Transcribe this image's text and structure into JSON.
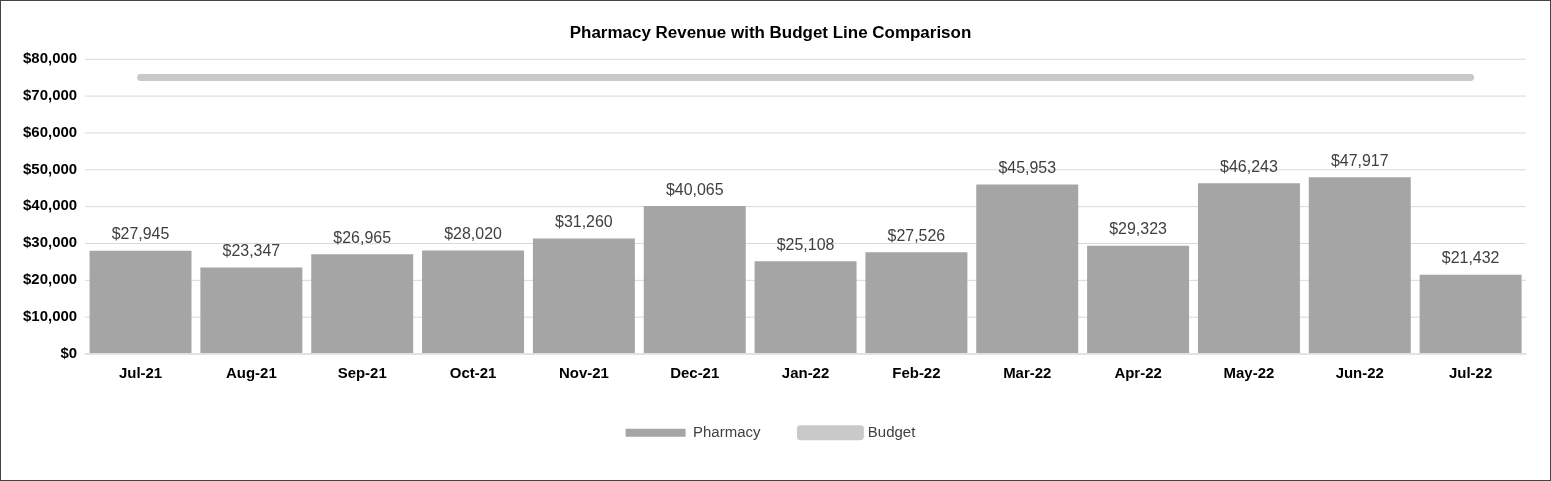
{
  "chart_data": {
    "type": "bar",
    "title": "Pharmacy Revenue with Budget Line Comparison",
    "categories": [
      "Jul-21",
      "Aug-21",
      "Sep-21",
      "Oct-21",
      "Nov-21",
      "Dec-21",
      "Jan-22",
      "Feb-22",
      "Mar-22",
      "Apr-22",
      "May-22",
      "Jun-22",
      "Jul-22"
    ],
    "series": [
      {
        "name": "Pharmacy",
        "color": "#a5a5a5",
        "values": [
          27945,
          23347,
          26965,
          28020,
          31260,
          40065,
          25108,
          27526,
          45953,
          29323,
          46243,
          47917,
          21432
        ],
        "value_labels": [
          "$27,945",
          "$23,347",
          "$26,965",
          "$28,020",
          "$31,260",
          "$40,065",
          "$25,108",
          "$27,526",
          "$45,953",
          "$29,323",
          "$46,243",
          "$47,917",
          "$21,432"
        ]
      },
      {
        "name": "Budget",
        "type": "line",
        "color": "#c9c9c9",
        "values": [
          75000,
          75000,
          75000,
          75000,
          75000,
          75000,
          75000,
          75000,
          75000,
          75000,
          75000,
          75000,
          75000
        ]
      }
    ],
    "ylim": [
      0,
      80000
    ],
    "yticks": [
      {
        "value": 0,
        "label": "$0"
      },
      {
        "value": 10000,
        "label": "$10,000"
      },
      {
        "value": 20000,
        "label": "$20,000"
      },
      {
        "value": 30000,
        "label": "$30,000"
      },
      {
        "value": 40000,
        "label": "$40,000"
      },
      {
        "value": 50000,
        "label": "$50,000"
      },
      {
        "value": 60000,
        "label": "$60,000"
      },
      {
        "value": 70000,
        "label": "$70,000"
      },
      {
        "value": 80000,
        "label": "$80,000"
      }
    ],
    "grid": "y",
    "legend": "bottom",
    "marker": "none"
  }
}
